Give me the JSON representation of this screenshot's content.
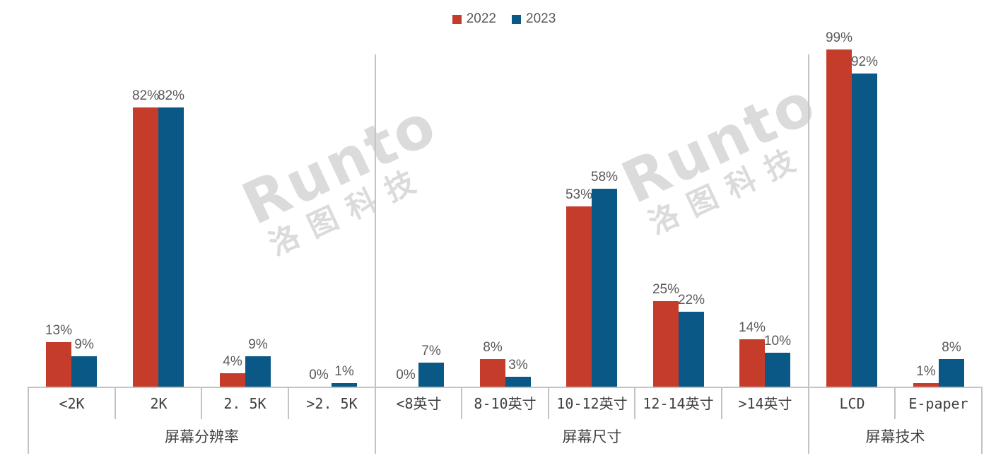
{
  "watermark": {
    "brand": "Runto",
    "cn": "洛图科技"
  },
  "chart_data": {
    "type": "bar",
    "subtype": "grouped-bar-multilevel-axis",
    "title": "",
    "xlabel": "",
    "ylabel": "",
    "ylim": [
      0,
      100
    ],
    "value_suffix": "%",
    "grid": false,
    "legend_position": "top-center",
    "axis_line_color": "#c3c3c3",
    "value_label_color": "#595959",
    "tick_label_color": "#404040",
    "series": [
      {
        "name": "2022",
        "color": "#c63c2b"
      },
      {
        "name": "2023",
        "color": "#095885"
      }
    ],
    "groups": [
      {
        "label": "屏幕分辨率",
        "categories": [
          "<2K",
          "2K",
          "2. 5K",
          ">2. 5K"
        ],
        "values": {
          "2022": [
            13,
            82,
            4,
            0
          ],
          "2023": [
            9,
            82,
            9,
            1
          ]
        }
      },
      {
        "label": "屏幕尺寸",
        "categories": [
          "<8英寸",
          "8-10英寸",
          "10-12英寸",
          "12-14英寸",
          ">14英寸"
        ],
        "values": {
          "2022": [
            0,
            8,
            53,
            25,
            14
          ],
          "2023": [
            7,
            3,
            58,
            22,
            10
          ]
        }
      },
      {
        "label": "屏幕技术",
        "categories": [
          "LCD",
          "E-paper"
        ],
        "values": {
          "2022": [
            99,
            1
          ],
          "2023": [
            92,
            8
          ]
        }
      }
    ]
  }
}
